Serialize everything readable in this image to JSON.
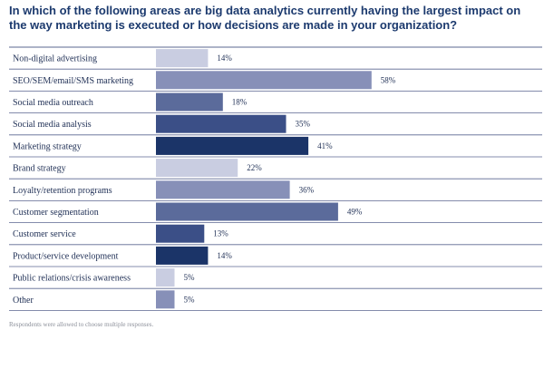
{
  "chart_data": {
    "type": "bar",
    "orientation": "horizontal",
    "title": "In which of the following areas are big data analytics currently having the largest impact on the way marketing is executed or how decisions are made in your organization?",
    "categories": [
      "Non-digital advertising",
      "SEO/SEM/email/SMS marketing",
      "Social media outreach",
      "Social media analysis",
      "Marketing strategy",
      "Brand strategy",
      "Loyalty/retention programs",
      "Customer segmentation",
      "Customer service",
      "Product/service development",
      "Public relations/crisis awareness",
      "Other"
    ],
    "values": [
      14,
      58,
      18,
      35,
      41,
      22,
      36,
      49,
      13,
      14,
      5,
      5
    ],
    "value_labels": [
      "14%",
      "58%",
      "18%",
      "35%",
      "41%",
      "22%",
      "36%",
      "49%",
      "13%",
      "14%",
      "5%",
      "5%"
    ],
    "bar_colors": [
      "#c9cde1",
      "#8790b8",
      "#5b6b9b",
      "#3b4f87",
      "#1b3468",
      "#c9cde1",
      "#8790b8",
      "#5b6b9b",
      "#3b4f87",
      "#1b3468",
      "#c9cde1",
      "#8790b8"
    ],
    "xlim": [
      0,
      100
    ],
    "note": "Respondents were allowed to choose multiple responses."
  }
}
